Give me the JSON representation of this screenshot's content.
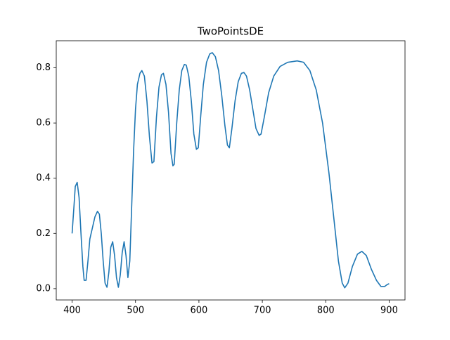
{
  "chart_data": {
    "type": "line",
    "title": "TwoPointsDE",
    "x": [
      400,
      403,
      405,
      408,
      411,
      414,
      417,
      419,
      422,
      425,
      428,
      432,
      436,
      440,
      443,
      446,
      449,
      452,
      455,
      458,
      461,
      464,
      467,
      470,
      473,
      476,
      479,
      482,
      485,
      488,
      491,
      494,
      497,
      500,
      503,
      507,
      510,
      514,
      518,
      522,
      526,
      529,
      533,
      537,
      541,
      544,
      548,
      552,
      556,
      559,
      561,
      565,
      569,
      573,
      577,
      580,
      584,
      588,
      592,
      596,
      599,
      603,
      607,
      612,
      617,
      621,
      626,
      631,
      636,
      641,
      645,
      648,
      652,
      657,
      662,
      667,
      671,
      675,
      680,
      685,
      690,
      695,
      698,
      703,
      710,
      718,
      728,
      740,
      755,
      765,
      775,
      785,
      795,
      805,
      813,
      820,
      826,
      830,
      835,
      842,
      850,
      857,
      864,
      872,
      880,
      887,
      893,
      897,
      900
    ],
    "series": [
      {
        "color": "#1f77b4",
        "values": [
          0.2,
          0.3,
          0.37,
          0.385,
          0.33,
          0.2,
          0.08,
          0.03,
          0.03,
          0.1,
          0.18,
          0.22,
          0.26,
          0.28,
          0.27,
          0.2,
          0.1,
          0.02,
          0.005,
          0.06,
          0.15,
          0.17,
          0.12,
          0.04,
          0.005,
          0.05,
          0.13,
          0.17,
          0.12,
          0.04,
          0.1,
          0.3,
          0.5,
          0.65,
          0.74,
          0.78,
          0.79,
          0.77,
          0.68,
          0.55,
          0.455,
          0.46,
          0.62,
          0.73,
          0.775,
          0.78,
          0.74,
          0.64,
          0.49,
          0.445,
          0.45,
          0.6,
          0.72,
          0.79,
          0.812,
          0.81,
          0.77,
          0.68,
          0.56,
          0.505,
          0.51,
          0.63,
          0.74,
          0.82,
          0.85,
          0.855,
          0.84,
          0.79,
          0.7,
          0.59,
          0.52,
          0.51,
          0.58,
          0.68,
          0.75,
          0.78,
          0.783,
          0.77,
          0.72,
          0.65,
          0.58,
          0.555,
          0.56,
          0.62,
          0.71,
          0.77,
          0.805,
          0.82,
          0.825,
          0.82,
          0.79,
          0.72,
          0.6,
          0.42,
          0.25,
          0.1,
          0.02,
          0.003,
          0.02,
          0.08,
          0.125,
          0.135,
          0.12,
          0.07,
          0.03,
          0.008,
          0.008,
          0.015,
          0.018
        ]
      }
    ],
    "xlim": [
      375,
      925
    ],
    "xticks": [
      400,
      500,
      600,
      700,
      800,
      900
    ],
    "ylim": [
      -0.041,
      0.898
    ],
    "yticks": [
      {
        "value": 0,
        "label": "0.0"
      },
      0.2,
      0.4,
      0.6,
      0.8
    ]
  }
}
